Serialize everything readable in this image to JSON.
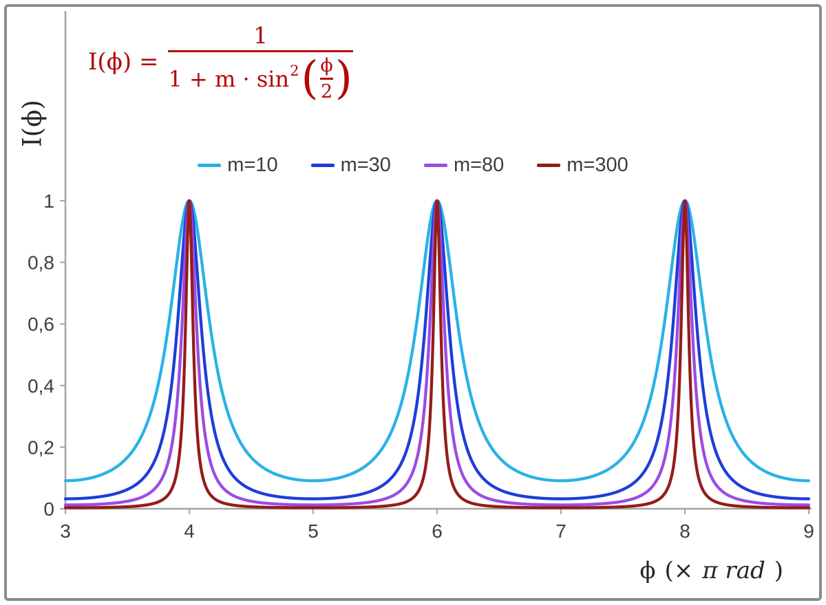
{
  "formula": {
    "color": "#b40606",
    "lhs": "I(ϕ) =",
    "numerator": "1",
    "den_text": "1 + m · sin",
    "den_sup": "2",
    "open_paren": "(",
    "inner_numerator": "ϕ",
    "inner_denominator": "2",
    "close_paren": ")"
  },
  "labels": {
    "y_axis": "I(ϕ)",
    "x_phi": "ϕ",
    "x_open": "(×",
    "x_italic": "π rad",
    "x_close": ")"
  },
  "chart_data": {
    "type": "line",
    "title": "",
    "xlabel": "ϕ (× π rad)",
    "ylabel": "I(ϕ)",
    "xlim": [
      3,
      9
    ],
    "ylim": [
      0,
      1
    ],
    "x_ticks": [
      {
        "value": 3,
        "label": "3"
      },
      {
        "value": 4,
        "label": "4"
      },
      {
        "value": 5,
        "label": "5"
      },
      {
        "value": 6,
        "label": "6"
      },
      {
        "value": 7,
        "label": "7"
      },
      {
        "value": 8,
        "label": "8"
      },
      {
        "value": 9,
        "label": "9"
      }
    ],
    "y_ticks": [
      {
        "value": 0,
        "label": "0"
      },
      {
        "value": 0.2,
        "label": "0,2"
      },
      {
        "value": 0.4,
        "label": "0,4"
      },
      {
        "value": 0.6,
        "label": "0,6"
      },
      {
        "value": 0.8,
        "label": "0,8"
      },
      {
        "value": 1,
        "label": "1"
      }
    ],
    "function": "I(ϕ) = 1 / (1 + m · sin²(ϕ/2)), x axis in units of π rad",
    "peaks_x": [
      4,
      6,
      8
    ],
    "peak_value": 1,
    "series": [
      {
        "name": "m=10",
        "m": 10,
        "color": "#29b2e6",
        "min_value": 0.0909
      },
      {
        "name": "m=30",
        "m": 30,
        "color": "#1d3ed8",
        "min_value": 0.0323
      },
      {
        "name": "m=80",
        "m": 80,
        "color": "#9b4ce4",
        "min_value": 0.0123
      },
      {
        "name": "m=300",
        "m": 300,
        "color": "#941d1a",
        "min_value": 0.0033
      }
    ],
    "legend_position": "top-center",
    "grid": false,
    "axis_color": "#a3a3a3",
    "tick_label_color": "#3f3f3f"
  }
}
